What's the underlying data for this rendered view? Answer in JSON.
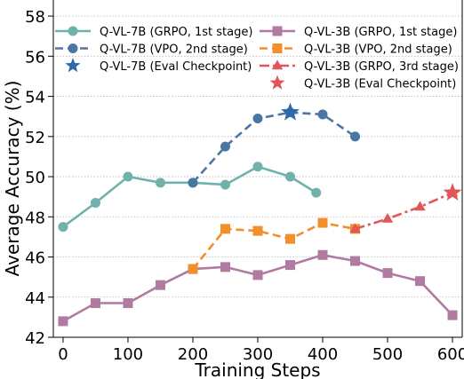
{
  "chart_data": {
    "type": "line",
    "xlabel": "Training Steps",
    "ylabel": "Average Accuracy (%)",
    "xlim": [
      -15,
      615
    ],
    "ylim": [
      42,
      58.8
    ],
    "xticks": [
      0,
      100,
      200,
      300,
      400,
      500,
      600
    ],
    "yticks": [
      42,
      44,
      46,
      48,
      50,
      52,
      54,
      56,
      58
    ],
    "grid": "horizontal dotted",
    "legend": "top, two columns",
    "series": [
      {
        "name": "Q-VL-7B (GRPO, 1st stage)",
        "color": "#6fb2ab",
        "marker": "circle",
        "linestyle": "solid",
        "x": [
          0,
          50,
          100,
          150,
          200,
          250,
          300,
          350,
          390
        ],
        "y": [
          47.5,
          48.7,
          50.0,
          49.7,
          49.7,
          49.6,
          50.5,
          50.0,
          49.2
        ]
      },
      {
        "name": "Q-VL-7B (VPO, 2nd stage)",
        "color": "#4a76a4",
        "marker": "circle",
        "linestyle": "dashed",
        "x": [
          200,
          250,
          300,
          350,
          400,
          450
        ],
        "y": [
          49.7,
          51.5,
          52.9,
          53.2,
          53.1,
          52.0
        ]
      },
      {
        "name": "Q-VL-7B (Eval Checkpoint)",
        "color": "#2f6aa8",
        "marker": "star",
        "linestyle": "none",
        "x": [
          350
        ],
        "y": [
          53.2
        ]
      },
      {
        "name": "Q-VL-3B (GRPO, 1st stage)",
        "color": "#b07aa1",
        "marker": "square",
        "linestyle": "solid",
        "x": [
          0,
          50,
          100,
          150,
          200,
          250,
          300,
          350,
          400,
          450,
          500,
          550,
          600
        ],
        "y": [
          42.8,
          43.7,
          43.7,
          44.6,
          45.4,
          45.5,
          45.1,
          45.6,
          46.1,
          45.8,
          45.2,
          44.8,
          43.1
        ]
      },
      {
        "name": "Q-VL-3B (VPO, 2nd stage)",
        "color": "#f28e2b",
        "marker": "square",
        "linestyle": "dashed",
        "x": [
          200,
          250,
          300,
          350,
          400,
          450
        ],
        "y": [
          45.4,
          47.4,
          47.3,
          46.9,
          47.7,
          47.4
        ]
      },
      {
        "name": "Q-VL-3B (GRPO, 3rd stage)",
        "color": "#e15759",
        "marker": "triangle",
        "linestyle": "dashdot",
        "x": [
          450,
          500,
          550,
          600
        ],
        "y": [
          47.4,
          47.9,
          48.5,
          49.2
        ]
      },
      {
        "name": "Q-VL-3B (Eval Checkpoint)",
        "color": "#e15759",
        "marker": "star",
        "linestyle": "none",
        "x": [
          600
        ],
        "y": [
          49.2
        ]
      }
    ]
  }
}
